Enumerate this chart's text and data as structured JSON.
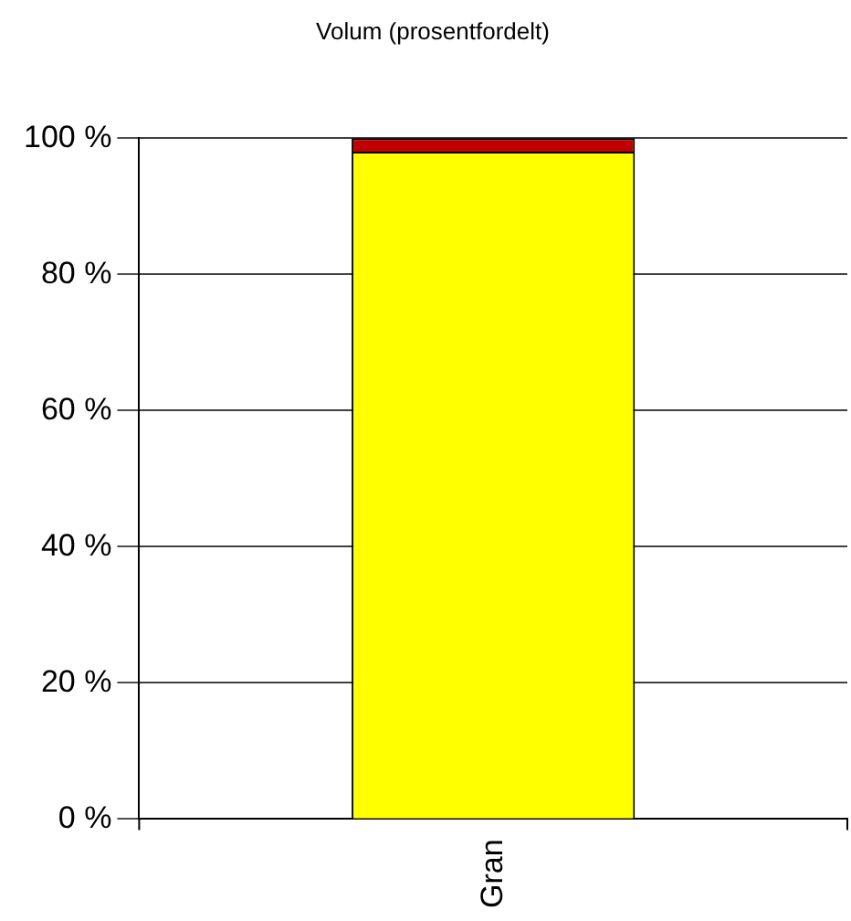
{
  "chart_data": {
    "type": "bar",
    "title": "Volum (prosentfordelt)",
    "categories": [
      "Gran"
    ],
    "stacked": true,
    "series": [
      {
        "color": "#ffff00",
        "values": [
          98
        ]
      },
      {
        "color": "#c00000",
        "values": [
          2
        ]
      }
    ],
    "ylim": [
      0,
      100
    ],
    "yticks": [
      {
        "value": 0,
        "label": "0 %"
      },
      {
        "value": 20,
        "label": "20 %"
      },
      {
        "value": 40,
        "label": "40 %"
      },
      {
        "value": 60,
        "label": "60 %"
      },
      {
        "value": 80,
        "label": "80 %"
      },
      {
        "value": 100,
        "label": "100 %"
      }
    ],
    "grid": "y",
    "legend": false
  }
}
